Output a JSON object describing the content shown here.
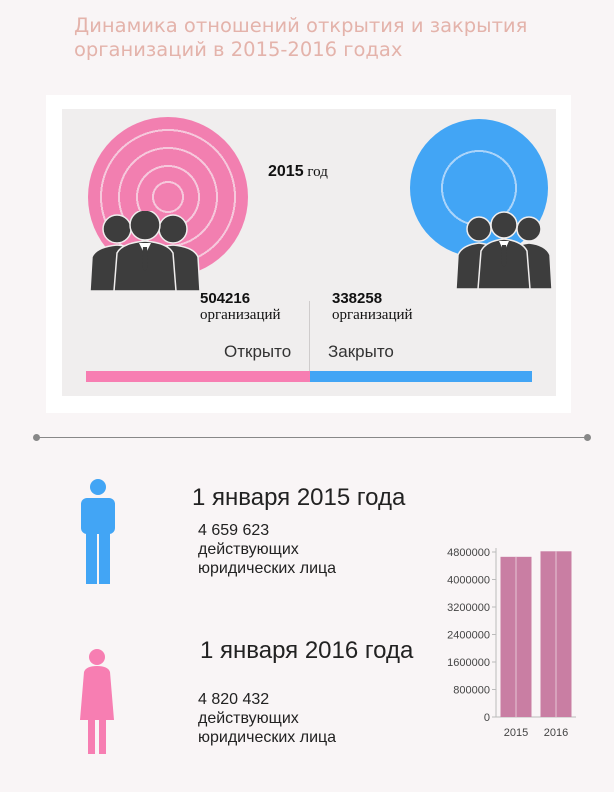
{
  "title": "Динамика отношений открытия и закрытия организаций в 2015-2016 годах",
  "panel": {
    "year_number": "2015",
    "year_word": "год",
    "opened": {
      "value": "504216",
      "unit": "организаций",
      "label": "Открыто"
    },
    "closed": {
      "value": "338258",
      "unit": "организаций",
      "label": "Закрыто"
    }
  },
  "entries": [
    {
      "date": "1 января 2015  года",
      "count": "4 659 623",
      "line2": "действующих",
      "line3": "юридических лица"
    },
    {
      "date": "1 января 2016 года",
      "count": "4 820 432",
      "line2": "действующих",
      "line3": "юридических лица"
    }
  ],
  "colors": {
    "pink": "#f77eb2",
    "blue": "#42a5f5",
    "bar": "#c97ea3",
    "title": "#e4b3ab"
  },
  "icons": [
    "people-group-icon",
    "person-icon"
  ],
  "chart_data": {
    "type": "bar",
    "categories": [
      "2015",
      "2016"
    ],
    "values": [
      4659623,
      4820432
    ],
    "ylim": [
      0,
      4800000
    ],
    "yticks": [
      0,
      800000,
      1600000,
      2400000,
      3200000,
      4000000,
      4800000
    ],
    "title": "",
    "xlabel": "",
    "ylabel": "",
    "grid": false
  }
}
